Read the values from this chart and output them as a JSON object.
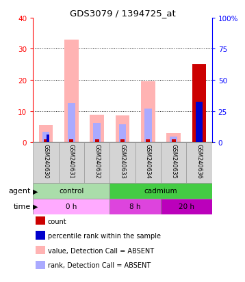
{
  "title": "GDS3079 / 1394725_at",
  "samples": [
    "GSM240630",
    "GSM240631",
    "GSM240632",
    "GSM240633",
    "GSM240634",
    "GSM240635",
    "GSM240636"
  ],
  "ylim_left": [
    0,
    40
  ],
  "ylim_right": [
    0,
    100
  ],
  "yticks_left": [
    0,
    10,
    20,
    30,
    40
  ],
  "yticks_right": [
    0,
    25,
    50,
    75,
    100
  ],
  "value_absent": [
    5.5,
    33.0,
    8.8,
    8.5,
    19.5,
    2.8,
    0.0
  ],
  "rank_absent": [
    3.2,
    12.5,
    6.2,
    5.8,
    10.8,
    1.8,
    0.0
  ],
  "count_present": [
    0.0,
    0.0,
    0.0,
    0.0,
    0.0,
    0.0,
    25.0
  ],
  "pct_present": [
    0.0,
    0.0,
    0.0,
    0.0,
    0.0,
    0.0,
    13.0
  ],
  "small_red_h": [
    1.0,
    1.0,
    1.0,
    1.0,
    1.0,
    1.0,
    0.0
  ],
  "small_blue_h": [
    2.5,
    0.0,
    0.0,
    0.0,
    0.0,
    0.0,
    0.0
  ],
  "color_value_absent": "#FFB3B3",
  "color_rank_absent": "#AAAAFF",
  "color_count": "#CC0000",
  "color_percentile": "#0000CC",
  "agent_groups": [
    {
      "label": "control",
      "start": 0,
      "end": 3,
      "color": "#AADDAA"
    },
    {
      "label": "cadmium",
      "start": 3,
      "end": 7,
      "color": "#44CC44"
    }
  ],
  "time_groups": [
    {
      "label": "0 h",
      "start": 0,
      "end": 3,
      "color": "#FFAAFF"
    },
    {
      "label": "8 h",
      "start": 3,
      "end": 5,
      "color": "#DD44DD"
    },
    {
      "label": "20 h",
      "start": 5,
      "end": 7,
      "color": "#BB00BB"
    }
  ],
  "legend_items": [
    {
      "color": "#CC0000",
      "label": "count"
    },
    {
      "color": "#0000CC",
      "label": "percentile rank within the sample"
    },
    {
      "color": "#FFB3B3",
      "label": "value, Detection Call = ABSENT"
    },
    {
      "color": "#AAAAFF",
      "label": "rank, Detection Call = ABSENT"
    }
  ]
}
